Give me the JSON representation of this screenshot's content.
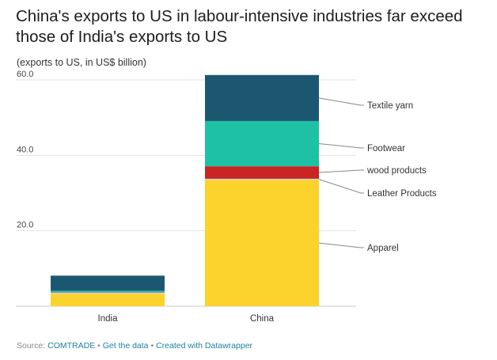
{
  "chart_data": {
    "type": "bar",
    "stacked": true,
    "title": "China's exports to US in labour-intensive industries far exceed those of India's exports to US",
    "subtitle": "(exports to US, in US$ billion)",
    "categories": [
      "India",
      "China"
    ],
    "yticks": [
      {
        "value": 20,
        "label": "20.0"
      },
      {
        "value": 40,
        "label": "40.0"
      },
      {
        "value": 60,
        "label": "60.0"
      }
    ],
    "ylim": [
      0,
      60
    ],
    "grid": true,
    "legend_placement": "right, inline labels",
    "series": [
      {
        "name": "Apparel",
        "color": "#fcd22c",
        "values": [
          3.3,
          33.5
        ]
      },
      {
        "name": "Leather Products",
        "color": "#d0d0d0",
        "values": [
          0.3,
          0.3
        ]
      },
      {
        "name": "wood products",
        "color": "#c82523",
        "values": [
          0.1,
          3.3
        ]
      },
      {
        "name": "Footwear",
        "color": "#1ec1a3",
        "values": [
          0.4,
          12.0
        ]
      },
      {
        "name": "Textile yarn",
        "color": "#1c5772",
        "values": [
          4.0,
          12.2
        ]
      }
    ]
  },
  "footer": {
    "source_prefix": "Source:",
    "source": "COMTRADE",
    "sep": "•",
    "get_data": "Get the data",
    "created_with": "Created with Datawrapper"
  }
}
